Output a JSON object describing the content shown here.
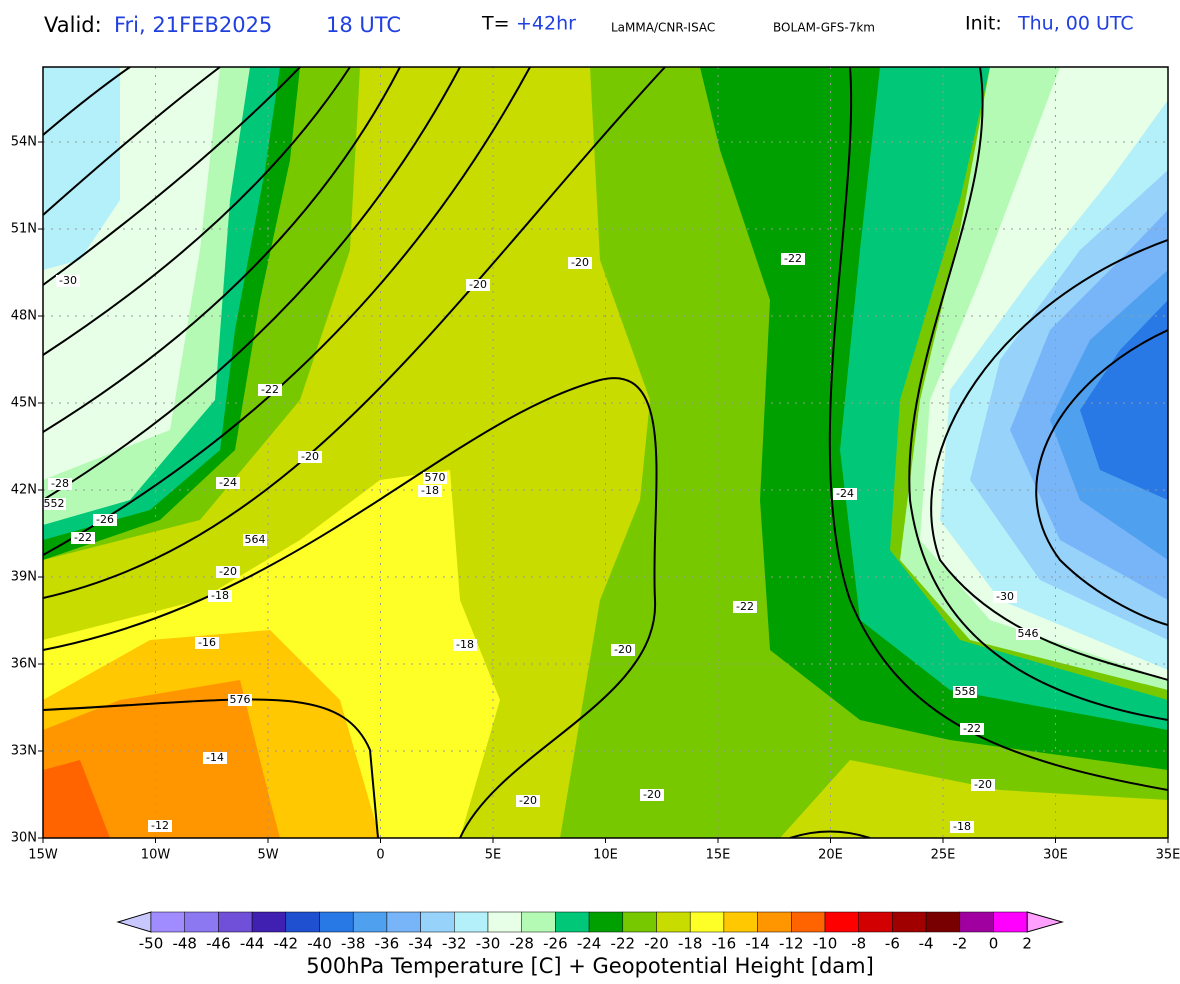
{
  "header": {
    "valid_label": "Valid:",
    "valid_date": "Fri, 21FEB2025",
    "valid_time": "18 UTC",
    "step_label": "T=",
    "step": "+42hr",
    "source": "LaMMA/CNR-ISAC",
    "model": "BOLAM-GFS-7km",
    "init_label": "Init:",
    "init": "Thu, 00 UTC"
  },
  "map": {
    "lat_ticks": [
      {
        "value": 54,
        "label": "54N"
      },
      {
        "value": 51,
        "label": "51N"
      },
      {
        "value": 48,
        "label": "48N"
      },
      {
        "value": 45,
        "label": "45N"
      },
      {
        "value": 42,
        "label": "42N"
      },
      {
        "value": 39,
        "label": "39N"
      },
      {
        "value": 36,
        "label": "36N"
      },
      {
        "value": 33,
        "label": "33N"
      },
      {
        "value": 30,
        "label": "30N"
      }
    ],
    "lon_ticks": [
      {
        "value": -15,
        "label": "15W"
      },
      {
        "value": -10,
        "label": "10W"
      },
      {
        "value": -5,
        "label": "5W"
      },
      0,
      {
        "value": 5,
        "label": "5E"
      },
      {
        "value": 10,
        "label": "10E"
      },
      {
        "value": 15,
        "label": "15E"
      },
      {
        "value": 20,
        "label": "20E"
      },
      {
        "value": 25,
        "label": "25E"
      },
      {
        "value": 30,
        "label": "30E"
      },
      {
        "value": 35,
        "label": "35E"
      }
    ],
    "contour_labels": [
      "-30",
      "-28",
      "552",
      "-26",
      "-22",
      "-22",
      "-24",
      "-20",
      "564",
      "-20",
      "-18",
      "-16",
      "576",
      "-14",
      "-12",
      "-20",
      "-20",
      "570",
      "-18",
      "-18",
      "-20",
      "-20",
      "-20",
      "-22",
      "-22",
      "-24",
      "-30",
      "546",
      "558",
      "-22",
      "-20",
      "-18"
    ]
  },
  "colorbar": {
    "title": "500hPa Temperature [C] + Geopotential Height [dam]",
    "levels": [
      -50,
      -48,
      -46,
      -44,
      -42,
      -40,
      -38,
      -36,
      -34,
      -32,
      -30,
      -28,
      -26,
      -24,
      -22,
      -20,
      -18,
      -16,
      -14,
      -12,
      -10,
      -8,
      -6,
      -4,
      -2,
      0,
      2
    ],
    "colors": [
      "#c8c8ff",
      "#a08cff",
      "#8c78f0",
      "#7050d8",
      "#4020b0",
      "#1e50d0",
      "#2878e6",
      "#50a0f0",
      "#78b4f8",
      "#96d2fa",
      "#b4f0fa",
      "#e6ffe6",
      "#b4fab4",
      "#00c878",
      "#00a000",
      "#78c800",
      "#c8dc00",
      "#ffff28",
      "#ffc800",
      "#ff9600",
      "#ff6400",
      "#ff0000",
      "#d20000",
      "#a00000",
      "#780000",
      "#a000a0",
      "#ff00ff",
      "#ffa0ff"
    ]
  }
}
